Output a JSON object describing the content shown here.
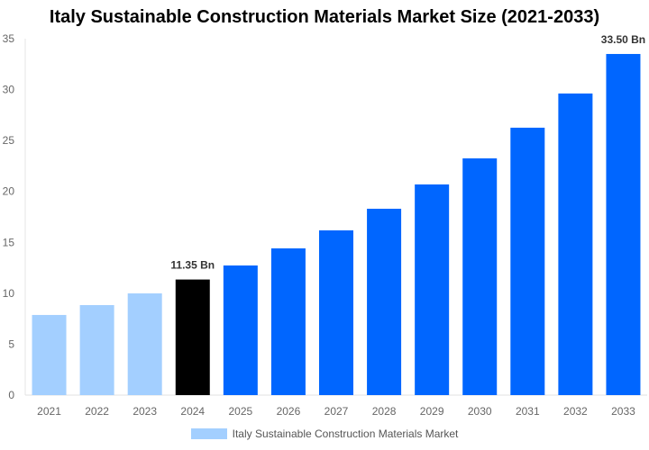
{
  "chart_data": {
    "type": "bar",
    "title": "Italy Sustainable Construction Materials Market Size (2021-2033)",
    "categories": [
      "2021",
      "2022",
      "2023",
      "2024",
      "2025",
      "2026",
      "2027",
      "2028",
      "2029",
      "2030",
      "2031",
      "2032",
      "2033"
    ],
    "series": [
      {
        "name": "Italy Sustainable Construction Materials Market",
        "values": [
          7.87,
          8.84,
          9.99,
          11.35,
          12.73,
          14.41,
          16.18,
          18.3,
          20.69,
          23.25,
          26.26,
          29.62,
          33.5
        ]
      }
    ],
    "data_labels": {
      "3": "11.35 Bn",
      "12": "33.50 Bn"
    },
    "ylim": [
      0,
      35
    ],
    "yticks": [
      0,
      5,
      10,
      15,
      20,
      25,
      30,
      35
    ],
    "xlabel": "",
    "ylabel": "",
    "grid": false,
    "legend": "bottom",
    "colors": {
      "historical": "#a3cfff",
      "base_year": "#000000",
      "forecast": "#0066ff",
      "legend": "#a3cfff"
    }
  }
}
